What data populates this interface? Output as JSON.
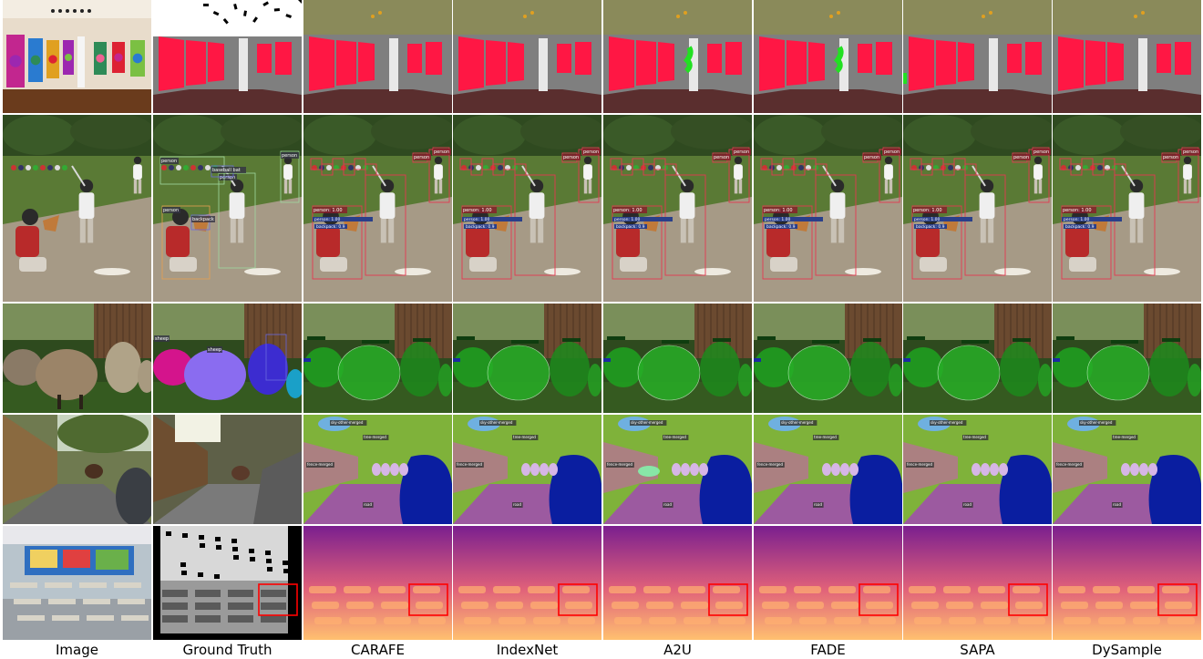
{
  "columns": [
    "Image",
    "Ground Truth",
    "CARAFE",
    "IndexNet",
    "A2U",
    "FADE",
    "SAPA",
    "DySample"
  ],
  "rows": [
    {
      "scene": "gallery",
      "task": "semantic-segmentation"
    },
    {
      "scene": "baseball",
      "task": "object-detection"
    },
    {
      "scene": "sheep",
      "task": "instance-segmentation"
    },
    {
      "scene": "road",
      "task": "panoptic-segmentation"
    },
    {
      "scene": "classroom",
      "task": "depth-estimation"
    }
  ],
  "det_labels": {
    "person": "person",
    "backpack": "backpack",
    "baseball_bat": "baseball bat",
    "sheep": "sheep"
  },
  "pan_labels": {
    "tree": "tree-merged",
    "fence": "fence-merged",
    "sky": "sky-other-merged",
    "road": "road"
  },
  "colors": {
    "seg_wall": "#ff1744",
    "seg_floor": "#5a2e2e",
    "seg_ceiling": "#8a8a5a",
    "seg_bg": "#7f7f7f",
    "det_box": "#e53950",
    "ins_green": "#1f9d1f",
    "pan_road": "#9c5aa0",
    "pan_car": "#0a1ea0",
    "pan_tree": "#7fb23a",
    "pan_sky": "#6fb0e0",
    "depth_far": "#7a1f8f",
    "depth_near": "#ffc070",
    "highlight_box": "#ff0000"
  }
}
